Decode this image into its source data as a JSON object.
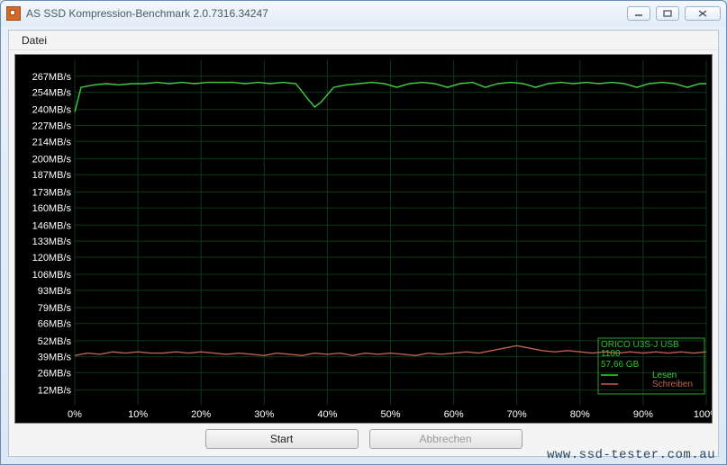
{
  "window": {
    "title": "AS SSD Kompression-Benchmark 2.0.7316.34247"
  },
  "menu": {
    "file_label": "Datei"
  },
  "buttons": {
    "start_label": "Start",
    "cancel_label": "Abbrechen"
  },
  "watermark": "www.ssd-tester.com.au",
  "chart": {
    "type": "line",
    "background_color": "#000000",
    "grid_color": "#0d3818",
    "axis_text_color": "#ffffff",
    "label_fontsize": 11,
    "y_unit": "MB/s",
    "y_ticks": [
      12,
      26,
      39,
      52,
      66,
      79,
      93,
      106,
      120,
      133,
      146,
      160,
      173,
      187,
      200,
      214,
      227,
      240,
      254,
      267
    ],
    "y_max": 280,
    "x_ticks_pct": [
      0,
      10,
      20,
      30,
      40,
      50,
      60,
      70,
      80,
      90,
      100
    ],
    "x_grid_pct": [
      0,
      10,
      20,
      30,
      40,
      50,
      60,
      70,
      80,
      90,
      100
    ],
    "legend": {
      "bg_color": "#000000",
      "border_color": "#30a030",
      "title": "ORICO U3S-J USB 1100",
      "title_color": "#30c030",
      "subtitle": "57,66 GB",
      "subtitle_color": "#30c030",
      "entries": [
        {
          "label": "Lesen",
          "color": "#40d040"
        },
        {
          "label": "Schreiben",
          "color": "#c06050"
        }
      ]
    },
    "series": [
      {
        "name": "Lesen",
        "color": "#40d040",
        "line_width": 1.4,
        "x": [
          0,
          1,
          3,
          5,
          7,
          9,
          11,
          13,
          15,
          17,
          19,
          21,
          23,
          25,
          27,
          29,
          31,
          33,
          35,
          37,
          38,
          39,
          40,
          41,
          43,
          45,
          47,
          49,
          51,
          53,
          55,
          57,
          59,
          61,
          63,
          65,
          67,
          69,
          71,
          73,
          75,
          77,
          79,
          81,
          83,
          85,
          87,
          89,
          91,
          93,
          95,
          97,
          99,
          100
        ],
        "y": [
          238,
          258,
          260,
          261,
          260,
          261,
          261,
          262,
          261,
          262,
          261,
          262,
          262,
          262,
          261,
          262,
          261,
          262,
          261,
          248,
          242,
          246,
          252,
          258,
          260,
          261,
          262,
          261,
          258,
          261,
          262,
          261,
          258,
          261,
          262,
          258,
          261,
          262,
          261,
          258,
          261,
          262,
          261,
          262,
          261,
          262,
          261,
          258,
          261,
          262,
          261,
          258,
          261,
          261
        ]
      },
      {
        "name": "Schreiben",
        "color": "#c06050",
        "line_width": 1.4,
        "x": [
          0,
          2,
          4,
          6,
          8,
          10,
          12,
          14,
          16,
          18,
          20,
          22,
          24,
          26,
          28,
          30,
          32,
          34,
          36,
          38,
          40,
          42,
          44,
          46,
          48,
          50,
          52,
          54,
          56,
          58,
          60,
          62,
          64,
          66,
          68,
          70,
          72,
          74,
          76,
          78,
          80,
          82,
          84,
          86,
          88,
          90,
          92,
          94,
          96,
          98,
          100
        ],
        "y": [
          40,
          42,
          41,
          43,
          42,
          43,
          42,
          42,
          43,
          42,
          43,
          42,
          41,
          42,
          41,
          40,
          42,
          41,
          40,
          42,
          41,
          42,
          40,
          42,
          41,
          42,
          41,
          40,
          42,
          41,
          42,
          43,
          42,
          44,
          46,
          48,
          46,
          44,
          43,
          44,
          43,
          42,
          43,
          42,
          43,
          42,
          43,
          42,
          43,
          42,
          43
        ]
      }
    ]
  }
}
